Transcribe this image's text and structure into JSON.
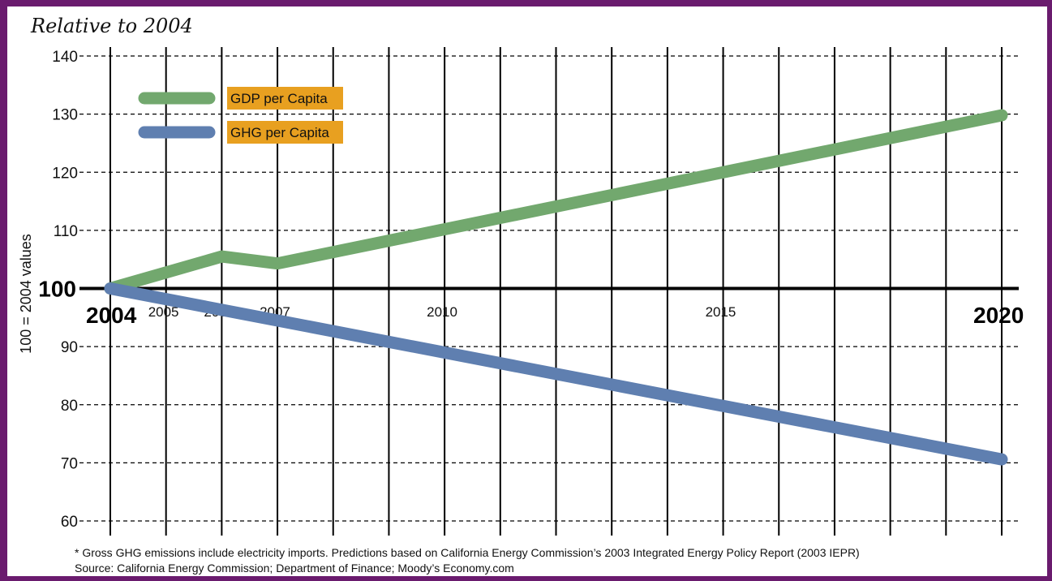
{
  "frame_color": "#6a1b6e",
  "chart_data": {
    "type": "line",
    "title": "Relative to 2004",
    "ylabel": "100 = 2004 values",
    "xlabel": "",
    "xlim": [
      2004,
      2020
    ],
    "ylim": [
      60,
      140
    ],
    "grid": true,
    "legend_position": "top-left",
    "y_ticks": [
      60,
      70,
      80,
      90,
      100,
      110,
      120,
      130,
      140
    ],
    "x_ticks": [
      {
        "year": 2004,
        "label": "2004",
        "bold": true
      },
      {
        "year": 2005,
        "label": "2005",
        "bold": false
      },
      {
        "year": 2006,
        "label": "2006",
        "bold": false
      },
      {
        "year": 2007,
        "label": "2007",
        "bold": false
      },
      {
        "year": 2010,
        "label": "2010",
        "bold": false
      },
      {
        "year": 2015,
        "label": "2015",
        "bold": false
      },
      {
        "year": 2020,
        "label": "2020",
        "bold": true
      }
    ],
    "series": [
      {
        "name": "GDP per Capita",
        "color": "#72a86e",
        "points": [
          [
            2004,
            100
          ],
          [
            2006,
            105.5
          ],
          [
            2007,
            104.3
          ],
          [
            2020,
            129.8
          ]
        ]
      },
      {
        "name": "GHG per Capita",
        "color": "#5f7fb0",
        "points": [
          [
            2004,
            100
          ],
          [
            2020,
            70.6
          ]
        ]
      }
    ],
    "legend_label_bg": "#e8a020",
    "footnote": "* Gross GHG emissions include electricity imports.  Predictions based on California Energy Commission’s 2003 Integrated Energy Policy Report (2003 IEPR)",
    "source": "Source: California Energy Commission; Department of Finance; Moody’s Economy.com"
  }
}
